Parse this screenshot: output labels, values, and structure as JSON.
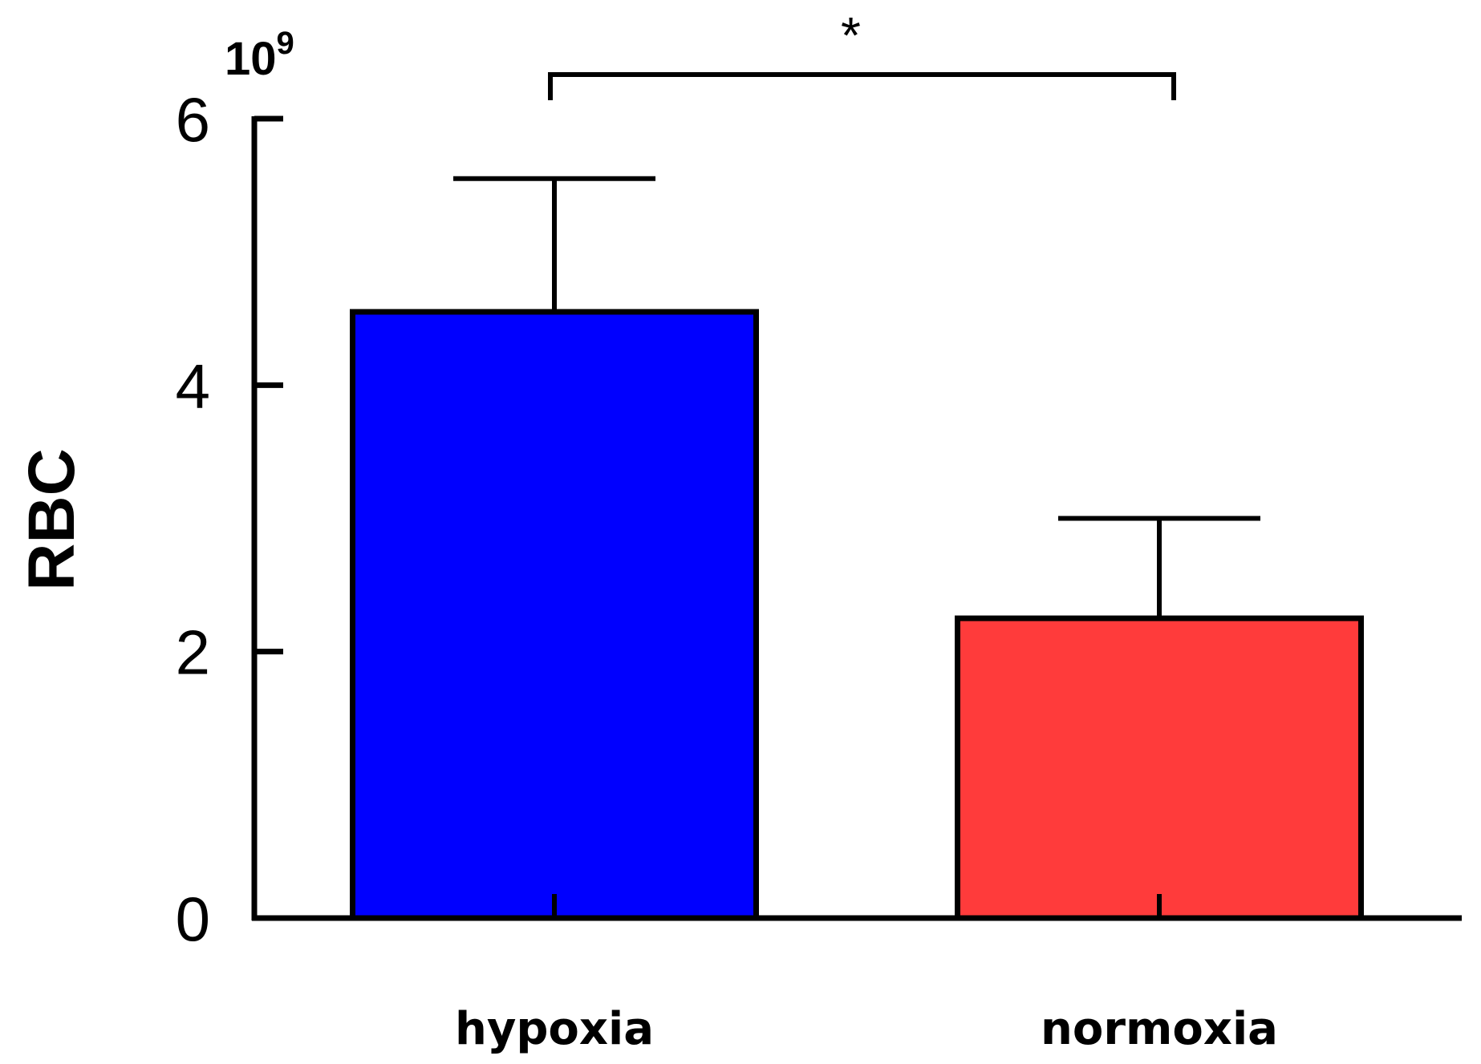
{
  "chart_data": {
    "type": "bar",
    "title": "",
    "xlabel": "",
    "ylabel": "RBC",
    "y_multiplier": {
      "base": "10",
      "exponent": "9"
    },
    "ylim": [
      0,
      6
    ],
    "yticks": [
      0,
      2,
      4,
      6
    ],
    "ytick_labels": [
      "0",
      "2",
      "4",
      "6"
    ],
    "categories": [
      "hypoxia",
      "normoxia"
    ],
    "values": [
      4.55,
      2.25
    ],
    "error_upper": [
      1.0,
      0.75
    ],
    "colors": [
      "#0000FF",
      "#FF3B3B"
    ],
    "grid": false,
    "significance": {
      "between": [
        "hypoxia",
        "normoxia"
      ],
      "label": "*"
    }
  }
}
